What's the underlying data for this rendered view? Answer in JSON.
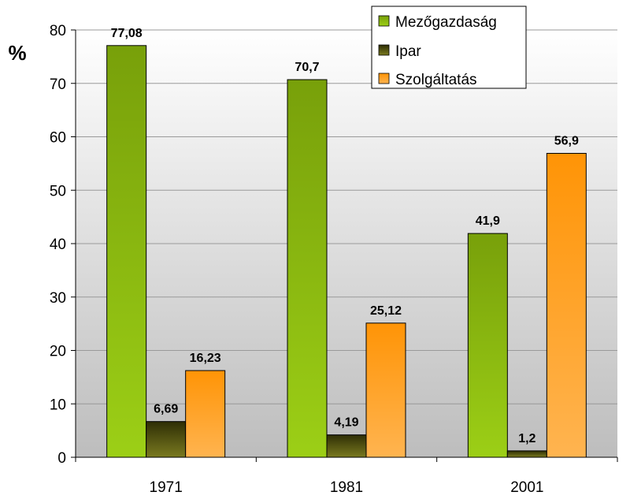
{
  "chart_data": {
    "type": "bar",
    "title": "",
    "xlabel": "",
    "ylabel": "%",
    "ylim": [
      0,
      80
    ],
    "yticks": [
      0,
      10,
      20,
      30,
      40,
      50,
      60,
      70,
      80
    ],
    "grid": true,
    "legend_position": "top-right",
    "categories": [
      "1971",
      "1981",
      "2001"
    ],
    "series": [
      {
        "name": "Mezőgazdaság",
        "values": [
          77.08,
          70.7,
          41.9
        ],
        "labels": [
          "77,08",
          "70,7",
          "41,9"
        ],
        "color": "#8cbf1a"
      },
      {
        "name": "Ipar",
        "values": [
          6.69,
          4.19,
          1.2
        ],
        "labels": [
          "6,69",
          "4,19",
          "1,2"
        ],
        "color": "#4a4a10"
      },
      {
        "name": "Szolgáltatás",
        "values": [
          16.23,
          25.12,
          56.9
        ],
        "labels": [
          "16,23",
          "25,12",
          "56,9"
        ],
        "color": "#ff9a1a"
      }
    ]
  }
}
